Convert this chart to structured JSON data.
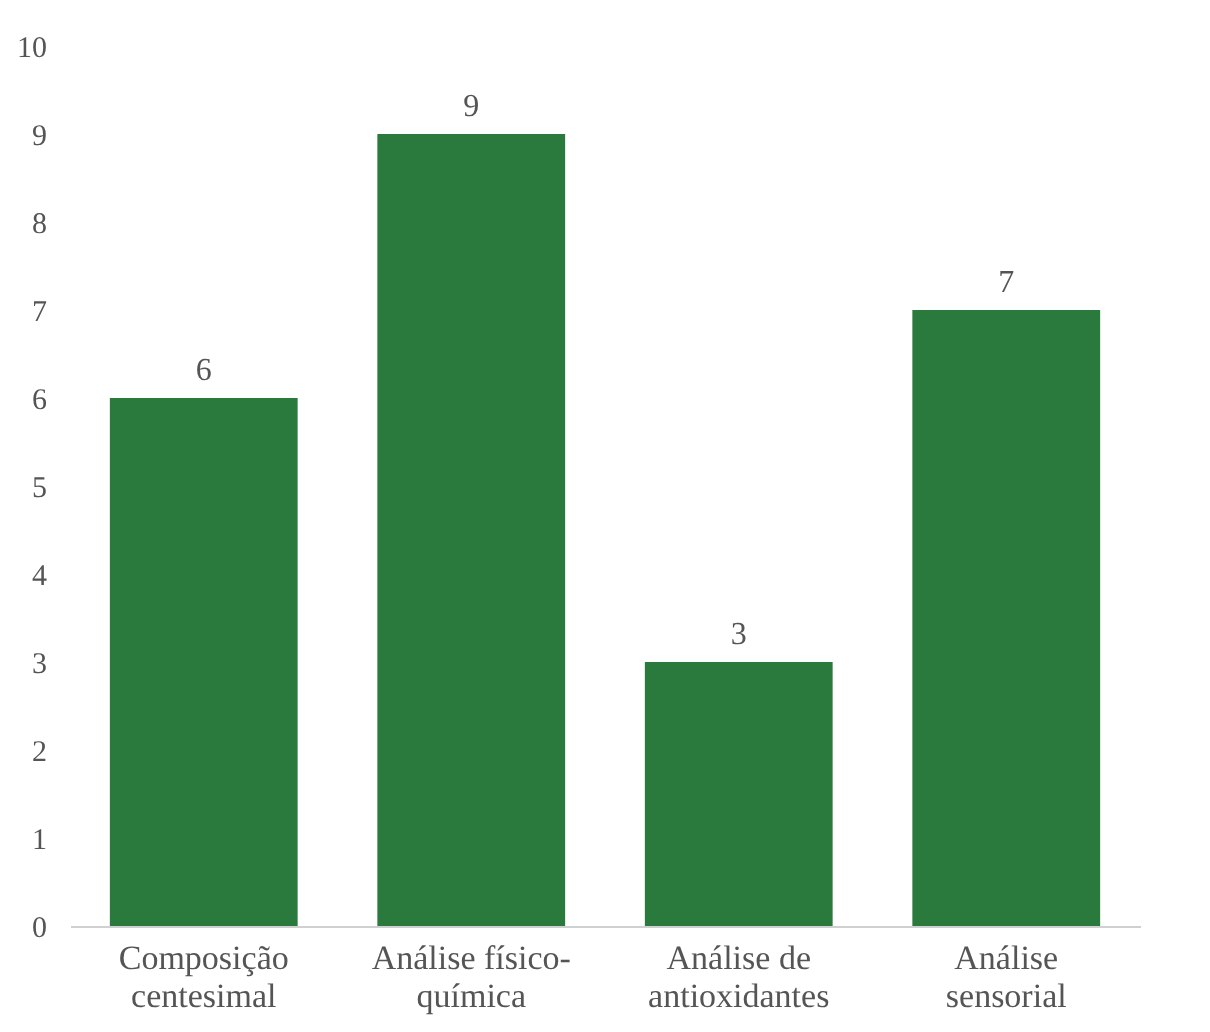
{
  "chart_data": {
    "type": "bar",
    "categories": [
      "Composição centesimal",
      "Análise físico-química",
      "Análise de antioxidantes",
      "Análise sensorial"
    ],
    "values": [
      6,
      9,
      3,
      7
    ],
    "color": "#2b7a3d",
    "ylim": [
      0,
      10
    ],
    "yticks": [
      0,
      1,
      2,
      3,
      4,
      5,
      6,
      7,
      8,
      9,
      10
    ],
    "grid": false,
    "data_labels": true
  }
}
